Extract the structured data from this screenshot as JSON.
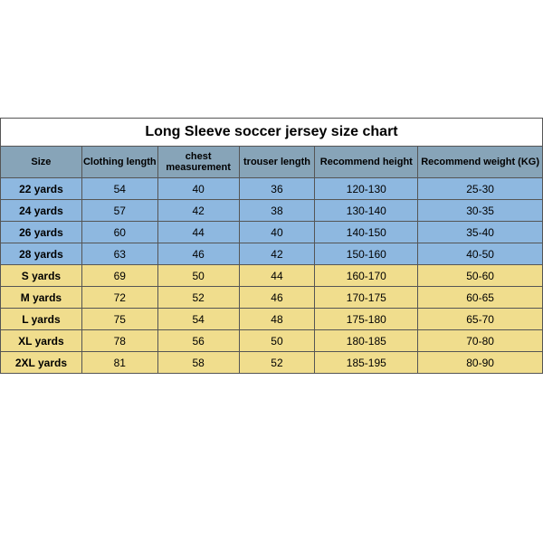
{
  "table": {
    "title": "Long Sleeve soccer jersey size chart",
    "columns": [
      "Size",
      "Clothing length",
      "chest measurement",
      "trouser length",
      "Recommend height",
      "Recommend weight (KG)"
    ],
    "col_widths_pct": [
      15,
      14,
      15,
      14,
      19,
      23
    ],
    "header_bg": "#87a4b8",
    "data_colors": {
      "kids": "#8eb8e0",
      "adult": "#f0dd8d"
    },
    "rows": [
      {
        "group": "kids",
        "cells": [
          "22 yards",
          "54",
          "40",
          "36",
          "120-130",
          "25-30"
        ]
      },
      {
        "group": "kids",
        "cells": [
          "24 yards",
          "57",
          "42",
          "38",
          "130-140",
          "30-35"
        ]
      },
      {
        "group": "kids",
        "cells": [
          "26 yards",
          "60",
          "44",
          "40",
          "140-150",
          "35-40"
        ]
      },
      {
        "group": "kids",
        "cells": [
          "28 yards",
          "63",
          "46",
          "42",
          "150-160",
          "40-50"
        ]
      },
      {
        "group": "adult",
        "cells": [
          "S yards",
          "69",
          "50",
          "44",
          "160-170",
          "50-60"
        ]
      },
      {
        "group": "adult",
        "cells": [
          "M yards",
          "72",
          "52",
          "46",
          "170-175",
          "60-65"
        ]
      },
      {
        "group": "adult",
        "cells": [
          "L yards",
          "75",
          "54",
          "48",
          "175-180",
          "65-70"
        ]
      },
      {
        "group": "adult",
        "cells": [
          "XL yards",
          "78",
          "56",
          "50",
          "180-185",
          "70-80"
        ]
      },
      {
        "group": "adult",
        "cells": [
          "2XL yards",
          "81",
          "58",
          "52",
          "185-195",
          "80-90"
        ]
      }
    ]
  }
}
